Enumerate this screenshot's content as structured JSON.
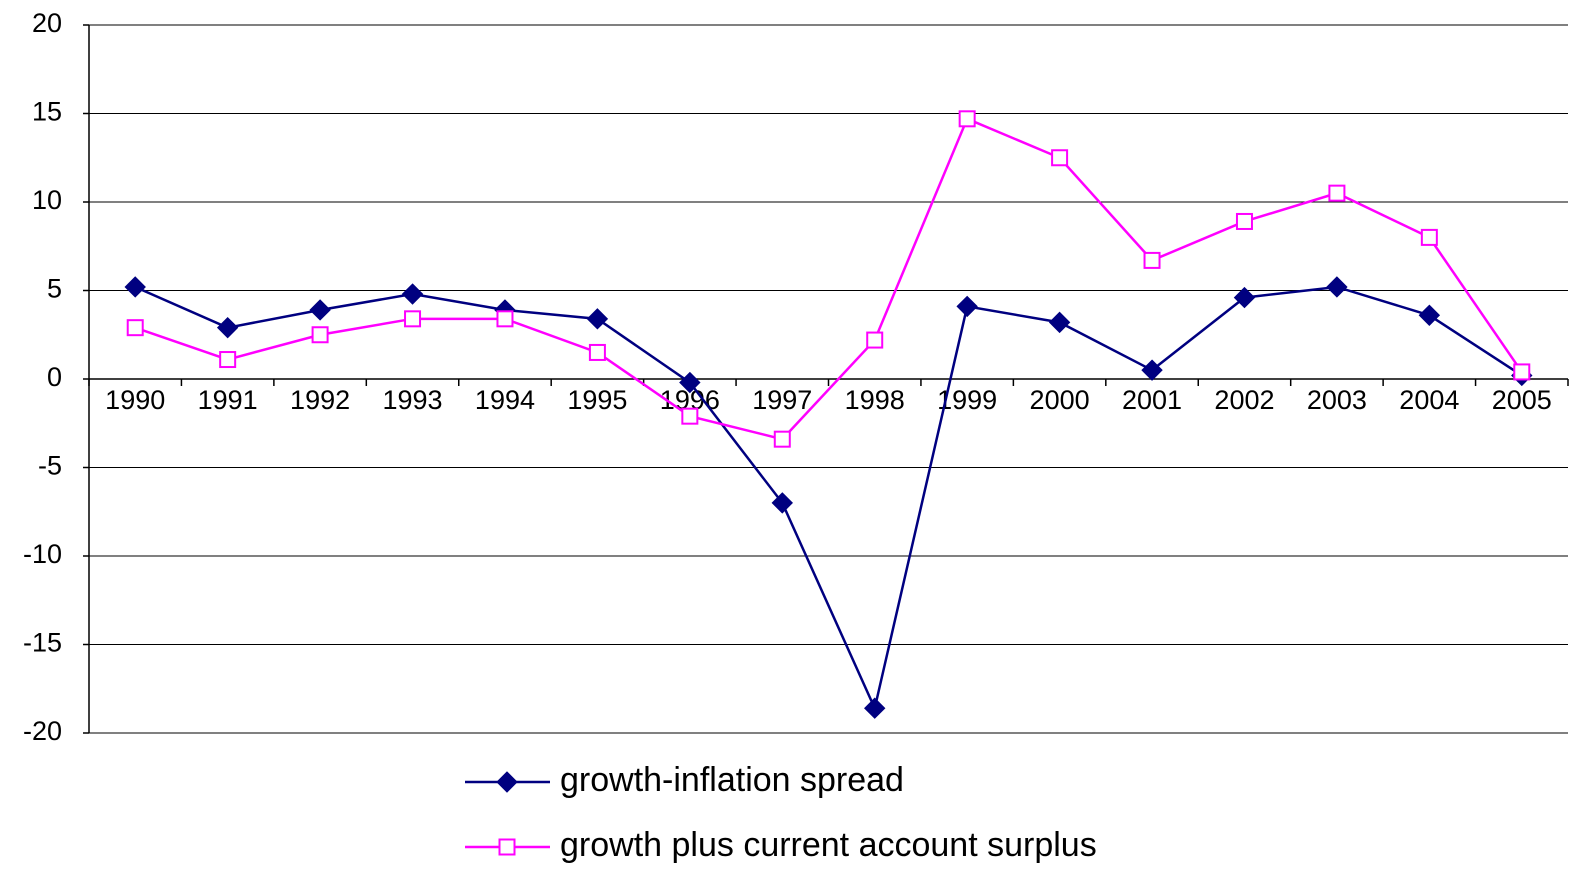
{
  "chart_data": {
    "type": "line",
    "categories": [
      "1990",
      "1991",
      "1992",
      "1993",
      "1994",
      "1995",
      "1996",
      "1997",
      "1998",
      "1999",
      "2000",
      "2001",
      "2002",
      "2003",
      "2004",
      "2005"
    ],
    "series": [
      {
        "name": "growth-inflation spread",
        "color": "#000080",
        "marker": "diamond",
        "values": [
          5.2,
          2.9,
          3.9,
          4.8,
          3.9,
          3.4,
          -0.2,
          -7.0,
          -18.6,
          4.1,
          3.2,
          0.5,
          4.6,
          5.2,
          3.6,
          0.2
        ]
      },
      {
        "name": "growth plus current account surplus",
        "color": "#ff00ff",
        "marker": "square",
        "values": [
          2.9,
          1.1,
          2.5,
          3.4,
          3.4,
          1.5,
          -2.1,
          -3.4,
          2.2,
          14.7,
          12.5,
          6.7,
          8.9,
          10.5,
          8.0,
          0.4
        ]
      }
    ],
    "ylim": [
      -20,
      20
    ],
    "yticks": [
      -20,
      -15,
      -10,
      -5,
      0,
      5,
      10,
      15,
      20
    ],
    "grid": true
  }
}
